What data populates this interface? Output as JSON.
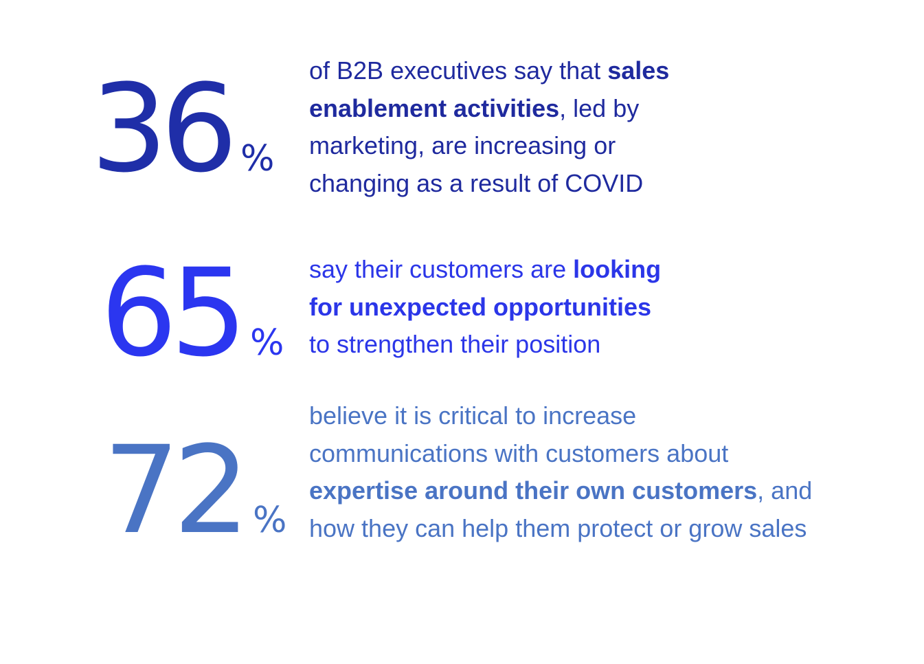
{
  "stats": [
    {
      "number": "36",
      "unit": "%",
      "lines": [
        {
          "before": "of B2B executives say that ",
          "bold": "sales",
          "after": ""
        },
        {
          "before": "",
          "bold": "enablement activities",
          "after": ", led by"
        },
        {
          "before": "marketing, are increasing or",
          "bold": "",
          "after": ""
        },
        {
          "before": "changing as a result of COVID",
          "bold": "",
          "after": ""
        }
      ],
      "color": "#1f2ea8"
    },
    {
      "number": "65",
      "unit": "%",
      "lines": [
        {
          "before": "say their customers are ",
          "bold": "looking",
          "after": ""
        },
        {
          "before": "",
          "bold": "for unexpected opportunities",
          "after": ""
        },
        {
          "before": "to strengthen their position",
          "bold": "",
          "after": ""
        }
      ],
      "color": "#2b36f0"
    },
    {
      "number": "72",
      "unit": "%",
      "lines": [
        {
          "before": "believe it is critical to increase",
          "bold": "",
          "after": ""
        },
        {
          "before": "communications with customers about",
          "bold": "",
          "after": ""
        },
        {
          "before": "",
          "bold": "expertise around their own customers",
          "after": ", and"
        },
        {
          "before": "how they can help them protect or grow sales",
          "bold": "",
          "after": ""
        }
      ],
      "color": "#4a74c4"
    }
  ]
}
